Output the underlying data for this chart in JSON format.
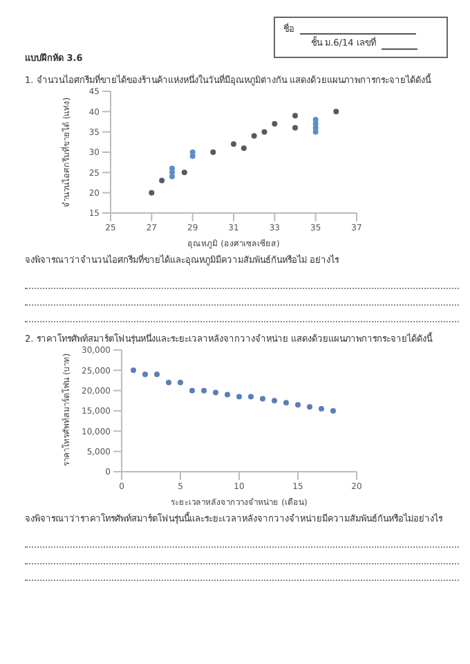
{
  "chart_data": [
    {
      "type": "scatter",
      "title": "1. จำนวนไอศกรีมที่ขายได้ของร้านค้าแห่งหนึ่งในวันที่มีอุณหภูมิต่างกัน แสดงด้วยแผนภาพการกระจายได้ดังนี้",
      "xlabel": "อุณหภูมิ (องศาเซลเซียส)",
      "ylabel": "จำนวนไอศกรีมที่ขายได้ (แท่ง)",
      "annotations": [
        "แบบฝึกหัด 3.6",
        "ชื่อ",
        "ชั้น ม.6/14    เลขที่",
        "จงพิจารณาว่าจำนวนไอศกรีมที่ขายได้และอุณหภูมิมีความสัมพันธ์กันหรือไม่ อย่างไร"
      ],
      "x": [
        27,
        27.5,
        28,
        28,
        28,
        28.6,
        29,
        29,
        30,
        31,
        31.5,
        32,
        32.5,
        33,
        34,
        34,
        35,
        35,
        35,
        35,
        36
      ],
      "values": [
        20,
        23,
        24,
        25,
        26,
        25,
        29,
        30,
        30,
        32,
        31,
        34,
        35,
        37,
        36,
        39,
        35,
        36,
        37,
        38,
        40
      ],
      "colors": [
        "#555a66",
        "#555a66",
        "#5b8fc9",
        "#5b8fc9",
        "#5b8fc9",
        "#555a66",
        "#5b8fc9",
        "#5b8fc9",
        "#555a66",
        "#555a66",
        "#555a66",
        "#555a66",
        "#555a66",
        "#555a66",
        "#555a66",
        "#555a66",
        "#5b8fc9",
        "#5b8fc9",
        "#5b8fc9",
        "#5b8fc9",
        "#555a66"
      ],
      "xlim": [
        25,
        37
      ],
      "xticks": [
        25,
        27,
        29,
        31,
        33,
        35,
        37
      ],
      "ylim": [
        15,
        45
      ],
      "yticks": [
        15,
        20,
        25,
        30,
        35,
        40,
        45
      ],
      "marker": "circle",
      "grid": false,
      "legend": false
    },
    {
      "type": "scatter",
      "title": "2. ราคาโทรศัพท์สมาร์ตโฟนรุ่นหนึ่งและระยะเวลาหลังจากวางจำหน่าย แสดงด้วยแผนภาพการกระจายได้ดังนี้",
      "xlabel": "ระยะเวลาหลังจากวางจำหน่าย (เดือน)",
      "ylabel": "ราคาโทรศัพท์สมาร์ตโฟน (บาท)",
      "annotations": [
        "จงพิจารณาว่าราคาโทรศัพท์สมาร์ตโฟนรุ่นนี้และระยะเวลาหลังจากวางจำหน่ายมีความสัมพันธ์กันหรือไม่อย่างไร"
      ],
      "x": [
        1,
        2,
        3,
        4,
        5,
        6,
        7,
        8,
        9,
        10,
        11,
        12,
        13,
        14,
        15,
        16,
        17,
        18
      ],
      "values": [
        25000,
        24000,
        24000,
        22000,
        22000,
        20000,
        20000,
        19500,
        19000,
        18500,
        18500,
        18000,
        17500,
        17000,
        16500,
        16000,
        15500,
        15000
      ],
      "color": "#5b7fb5",
      "xlim": [
        0,
        20
      ],
      "xticks": [
        0,
        5,
        10,
        15,
        20
      ],
      "ylim": [
        0,
        30000
      ],
      "yticks": [
        {
          "value": 0,
          "label": "0"
        },
        {
          "value": 5000,
          "label": "5,000"
        },
        {
          "value": 10000,
          "label": "10,000"
        },
        {
          "value": 15000,
          "label": "15,000"
        },
        {
          "value": 20000,
          "label": "20,000"
        },
        {
          "value": 25000,
          "label": "25,000"
        },
        {
          "value": 30000,
          "label": "30,000"
        }
      ],
      "marker": "circle",
      "grid": false,
      "legend": false
    }
  ]
}
